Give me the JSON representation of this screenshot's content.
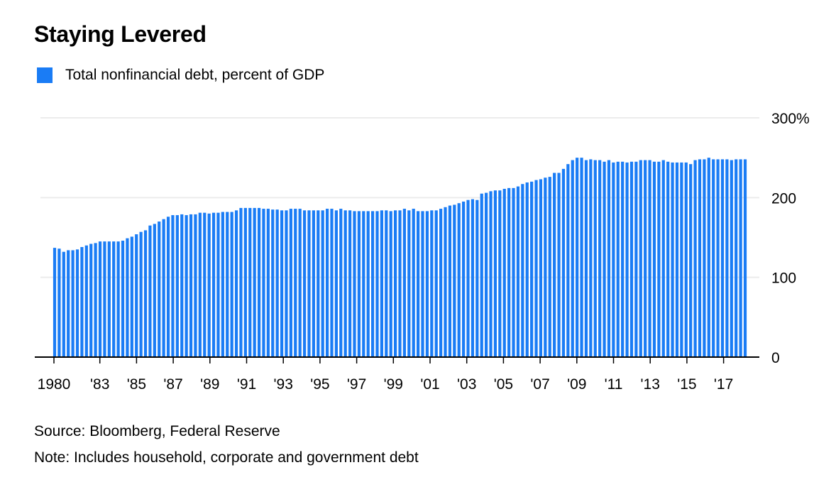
{
  "chart_data": {
    "type": "bar",
    "title": "Staying Levered",
    "legend": [
      {
        "label": "Total nonfinancial debt, percent of GDP",
        "color": "#1a7cf5"
      }
    ],
    "legend_placement": "top-left",
    "frequency": "quarterly",
    "xlabel": "",
    "ylabel": "",
    "ylim": [
      0,
      300
    ],
    "y_ticks": [
      {
        "value": 300,
        "label": "300%"
      },
      {
        "value": 200,
        "label": "200"
      },
      {
        "value": 100,
        "label": "100"
      },
      {
        "value": 0,
        "label": "0"
      }
    ],
    "x_ticks": [
      {
        "year": 1980,
        "label": "1980"
      },
      {
        "year": 1983,
        "label": "'83"
      },
      {
        "year": 1985,
        "label": "'85"
      },
      {
        "year": 1987,
        "label": "'87"
      },
      {
        "year": 1989,
        "label": "'89"
      },
      {
        "year": 1991,
        "label": "'91"
      },
      {
        "year": 1993,
        "label": "'93"
      },
      {
        "year": 1995,
        "label": "'95"
      },
      {
        "year": 1997,
        "label": "'97"
      },
      {
        "year": 1999,
        "label": "'99"
      },
      {
        "year": 2001,
        "label": "'01"
      },
      {
        "year": 2003,
        "label": "'03"
      },
      {
        "year": 2005,
        "label": "'05"
      },
      {
        "year": 2007,
        "label": "'07"
      },
      {
        "year": 2009,
        "label": "'09"
      },
      {
        "year": 2011,
        "label": "'11"
      },
      {
        "year": 2013,
        "label": "'13"
      },
      {
        "year": 2015,
        "label": "'15"
      },
      {
        "year": 2017,
        "label": "'17"
      }
    ],
    "grid": true,
    "values": [
      137,
      136,
      132,
      134,
      134,
      135,
      138,
      140,
      142,
      143,
      145,
      145,
      145,
      145,
      145,
      146,
      149,
      151,
      154,
      157,
      159,
      165,
      167,
      170,
      173,
      176,
      178,
      178,
      179,
      178,
      179,
      179,
      181,
      181,
      180,
      181,
      181,
      182,
      182,
      182,
      184,
      187,
      187,
      187,
      187,
      187,
      186,
      186,
      185,
      185,
      184,
      184,
      186,
      186,
      186,
      184,
      184,
      184,
      184,
      184,
      186,
      186,
      184,
      186,
      184,
      184,
      183,
      183,
      183,
      183,
      183,
      183,
      184,
      184,
      183,
      184,
      184,
      186,
      184,
      186,
      183,
      183,
      183,
      184,
      184,
      186,
      188,
      190,
      191,
      193,
      195,
      197,
      198,
      197,
      205,
      206,
      208,
      209,
      209,
      211,
      212,
      212,
      214,
      217,
      219,
      220,
      222,
      223,
      225,
      226,
      231,
      231,
      236,
      242,
      247,
      250,
      250,
      247,
      248,
      247,
      247,
      245,
      247,
      244,
      245,
      245,
      244,
      245,
      245,
      247,
      247,
      247,
      245,
      245,
      247,
      245,
      244,
      244,
      244,
      244,
      242,
      247,
      248,
      248,
      250,
      248,
      248,
      248,
      248,
      247,
      248,
      248,
      248
    ]
  },
  "source": "Source: Bloomberg, Federal Reserve",
  "note": "Note: Includes household, corporate and government debt"
}
